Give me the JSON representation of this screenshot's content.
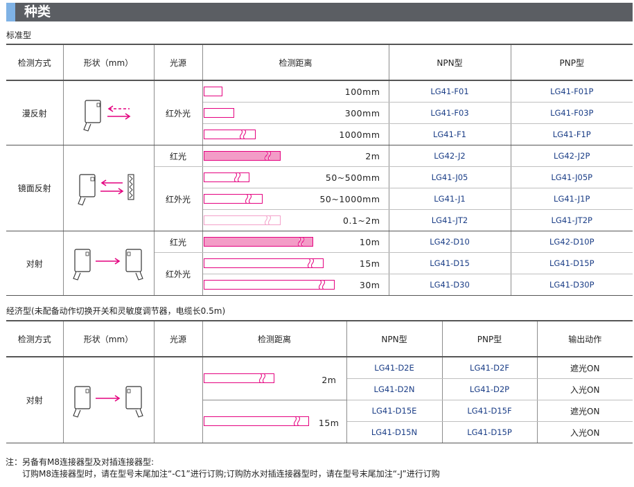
{
  "title": "种类",
  "section1": {
    "label": "标准型",
    "headers": [
      "检测方式",
      "形状（mm）",
      "光源",
      "检测距离",
      "NPN型",
      "PNP型"
    ],
    "groups": [
      {
        "method": "漫反射",
        "rows": [
          {
            "light": "红外光",
            "distance": "100mm",
            "npn": "LG41-F01",
            "pnp": "LG41-F01P"
          },
          {
            "light": "",
            "distance": "300mm",
            "npn": "LG41-F03",
            "pnp": "LG41-F03P"
          },
          {
            "light": "",
            "distance": "1000mm",
            "npn": "LG41-F1",
            "pnp": "LG41-F1P"
          }
        ]
      },
      {
        "method": "镜面反射",
        "rows": [
          {
            "light": "红光",
            "distance": "2m",
            "npn": "LG42-J2",
            "pnp": "LG42-J2P"
          },
          {
            "light": "红外光",
            "distance": "50~500mm",
            "npn": "LG41-J05",
            "pnp": "LG41-J05P"
          },
          {
            "light": "",
            "distance": "50~1000mm",
            "npn": "LG41-J1",
            "pnp": "LG41-J1P"
          },
          {
            "light": "",
            "distance": "0.1~2m",
            "npn": "LG41-JT2",
            "pnp": "LG41-JT2P"
          }
        ]
      },
      {
        "method": "对射",
        "rows": [
          {
            "light": "红光",
            "distance": "10m",
            "npn": "LG42-D10",
            "pnp": "LG42-D10P"
          },
          {
            "light": "红外光",
            "distance": "15m",
            "npn": "LG41-D15",
            "pnp": "LG41-D15P"
          },
          {
            "light": "",
            "distance": "30m",
            "npn": "LG41-D30",
            "pnp": "LG41-D30P"
          }
        ]
      }
    ]
  },
  "section2": {
    "label": "经济型(未配备动作切换开关和灵敏度调节器，电缆长0.5m)",
    "headers": [
      "检测方式",
      "形状（mm）",
      "光源",
      "检测距离",
      "NPN型",
      "PNP型",
      "输出动作"
    ],
    "method": "对射",
    "rows": [
      {
        "distance": "2m",
        "npn": "LG41-D2E",
        "pnp": "LG41-D2F",
        "output": "遮光ON"
      },
      {
        "npn": "LG41-D2N",
        "pnp": "LG41-D2P",
        "output": "入光ON"
      },
      {
        "distance": "15m",
        "npn": "LG41-D15E",
        "pnp": "LG41-D15F",
        "output": "遮光ON"
      },
      {
        "npn": "LG41-D15N",
        "pnp": "LG41-D15P",
        "output": "入光ON"
      }
    ]
  },
  "note": {
    "line1": "注：另备有M8连接器型及对插连接器型:",
    "line2": "订购M8连接器型时，请在型号末尾加注“-C1”进行订购;订购防水对插连接器型时，请在型号末尾加注“-J”进行订购"
  },
  "colors": {
    "bar_border": "#e4007f",
    "bar_fill": "#f39cc7",
    "model_text": "#1a3d86",
    "title_bar": "#5b5e63",
    "title_accent": "#7fb2e5"
  },
  "icons": [
    "diffuse-sensor-icon",
    "retroreflective-sensor-icon",
    "through-beam-sensor-icon"
  ]
}
